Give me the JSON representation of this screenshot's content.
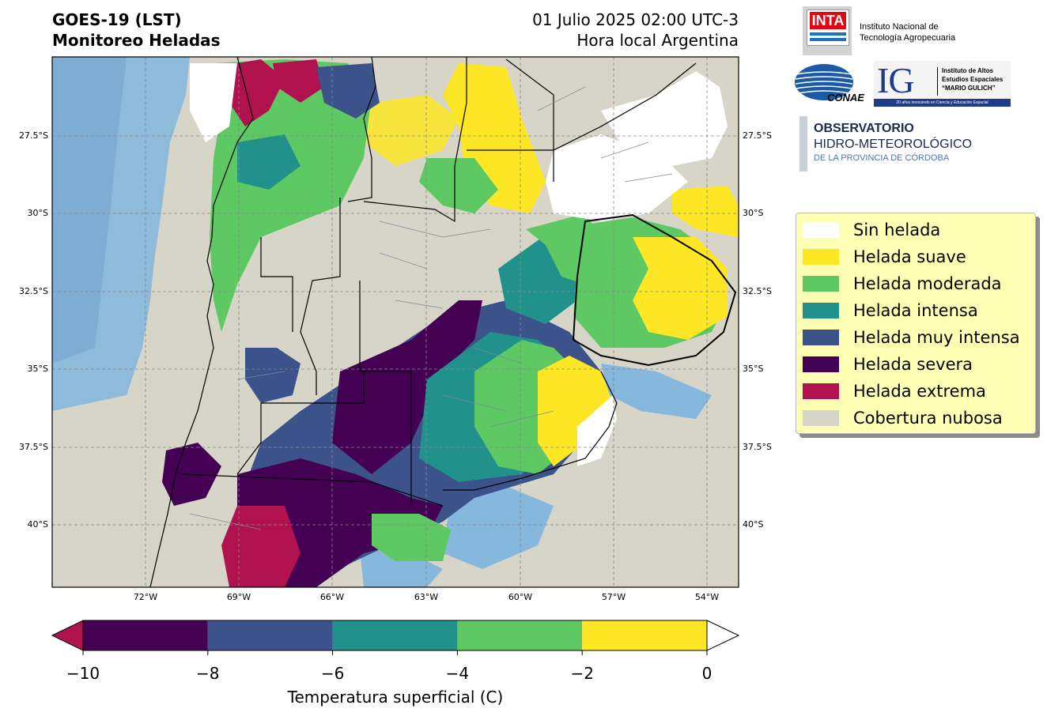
{
  "header": {
    "title_line1": "GOES-19 (LST)",
    "title_line2": "Monitoreo Heladas",
    "date_line1": "01 Julio 2025 02:00 UTC-3",
    "date_line2": "Hora local Argentina"
  },
  "map": {
    "lat_ticks": [
      "27.5°S",
      "30°S",
      "32.5°S",
      "35°S",
      "37.5°S",
      "40°S"
    ],
    "lon_ticks": [
      "72°W",
      "69°W",
      "66°W",
      "63°W",
      "60°W",
      "57°W",
      "54°W"
    ],
    "grid": true,
    "colors": {
      "land_cloud": "#d6d5c7",
      "ocean": "#86b7dd",
      "extrema": "#b0124f",
      "severa": "#440154",
      "muy_intensa": "#3b528b",
      "intensa": "#21918c",
      "moderada": "#5ec962",
      "suave": "#fde725",
      "sin_helada": "#ffffff"
    }
  },
  "legend": {
    "items": [
      {
        "label": "Sin helada",
        "color": "#ffffff"
      },
      {
        "label": "Helada suave",
        "color": "#fde725"
      },
      {
        "label": "Helada moderada",
        "color": "#5ec962"
      },
      {
        "label": "Helada intensa",
        "color": "#21918c"
      },
      {
        "label": "Helada muy intensa",
        "color": "#3b528b"
      },
      {
        "label": "Helada severa",
        "color": "#440154"
      },
      {
        "label": "Helada extrema",
        "color": "#b0124f"
      },
      {
        "label": "Cobertura nubosa",
        "color": "#d6d5c7"
      }
    ]
  },
  "colorbar": {
    "ticks": [
      "−10",
      "−8",
      "−6",
      "−4",
      "−2",
      "0"
    ],
    "label": "Temperatura superficial (C)",
    "segments": [
      "#440154",
      "#3b528b",
      "#21918c",
      "#5ec962",
      "#fde725"
    ],
    "under_color": "#b0124f",
    "over_color": "#ffffff"
  },
  "logos": {
    "inta_mark": "INTA",
    "inta_name_1": "Instituto Nacional de",
    "inta_name_2": "Tecnología Agropecuaria",
    "conae": "CONAE",
    "ig_mark": "IG",
    "ig_name_1": "Instituto de Altos",
    "ig_name_2": "Estudios Espaciales",
    "ig_name_3": "“MARIO GULICH”",
    "ig_tagline": "20 años innovando en Ciencia y Educación Espacial",
    "obs_1": "OBSERVATORIO",
    "obs_2": "HIDRO-METEOROLÓGICO",
    "obs_3": "DE LA PROVINCIA DE CÓRDOBA"
  }
}
